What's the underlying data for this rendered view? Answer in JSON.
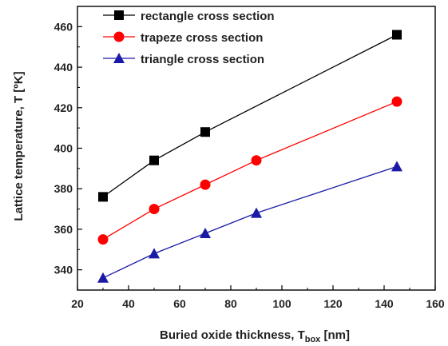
{
  "chart_data": {
    "type": "line",
    "xlabel": "Buried oxide thickness, T",
    "xlabel_sub": "box",
    "xlabel_unit": " [nm]",
    "ylabel": "Lattice temperature, T [ºK]",
    "xlim": [
      20,
      160
    ],
    "ylim": [
      330,
      470
    ],
    "xticks": [
      20,
      40,
      60,
      80,
      100,
      120,
      140,
      160
    ],
    "yticks": [
      340,
      360,
      380,
      400,
      420,
      440,
      460
    ],
    "legend_position": "top-left",
    "grid": false,
    "series": [
      {
        "name": "rectangle cross section",
        "marker": "square",
        "color": "#000000",
        "x": [
          30,
          50,
          70,
          145
        ],
        "y": [
          376,
          394,
          408,
          456
        ]
      },
      {
        "name": "trapeze cross section",
        "marker": "circle",
        "color": "#ff0000",
        "x": [
          30,
          50,
          70,
          90,
          145
        ],
        "y": [
          355,
          370,
          382,
          394,
          423
        ]
      },
      {
        "name": "triangle cross section",
        "marker": "triangle",
        "color": "#1a1aa6",
        "x": [
          30,
          50,
          70,
          90,
          145
        ],
        "y": [
          336,
          348,
          358,
          368,
          391
        ]
      }
    ]
  }
}
